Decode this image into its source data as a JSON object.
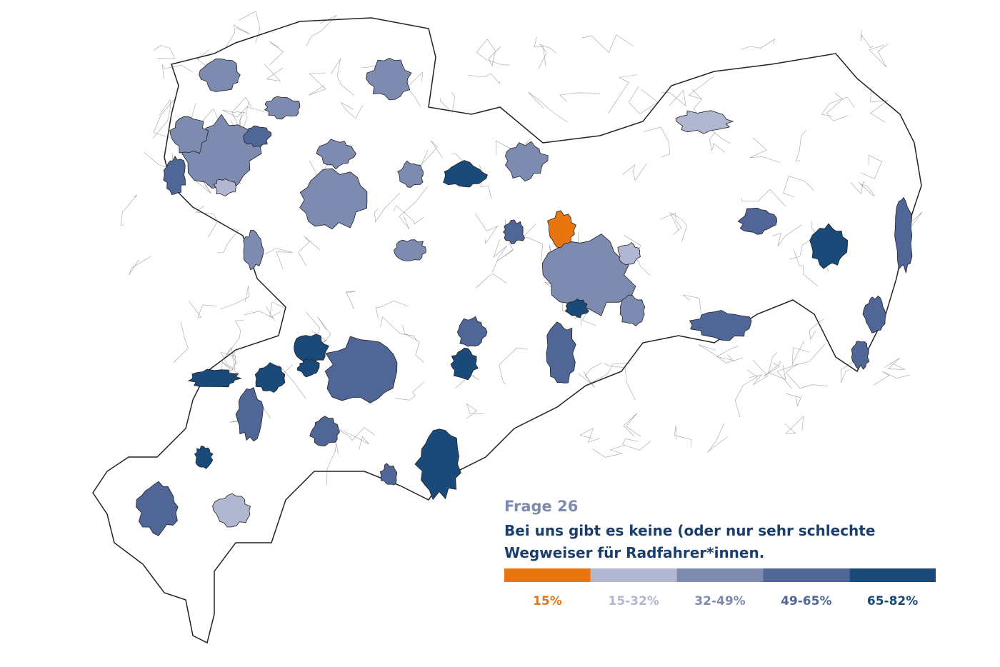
{
  "header": {
    "label": "Frage 26",
    "question_lines": [
      "Bei uns gibt es keine (oder nur sehr schlechte",
      "Wegweiser für Radfahrer*innen."
    ]
  },
  "legend": [
    {
      "label": "15%",
      "color": "#e8750e"
    },
    {
      "label": "15-32%",
      "color": "#b1b6d1"
    },
    {
      "label": "32-49%",
      "color": "#7d8bb1"
    },
    {
      "label": "49-65%",
      "color": "#4f6696"
    },
    {
      "label": "65-82%",
      "color": "#1a4a7a"
    }
  ]
}
